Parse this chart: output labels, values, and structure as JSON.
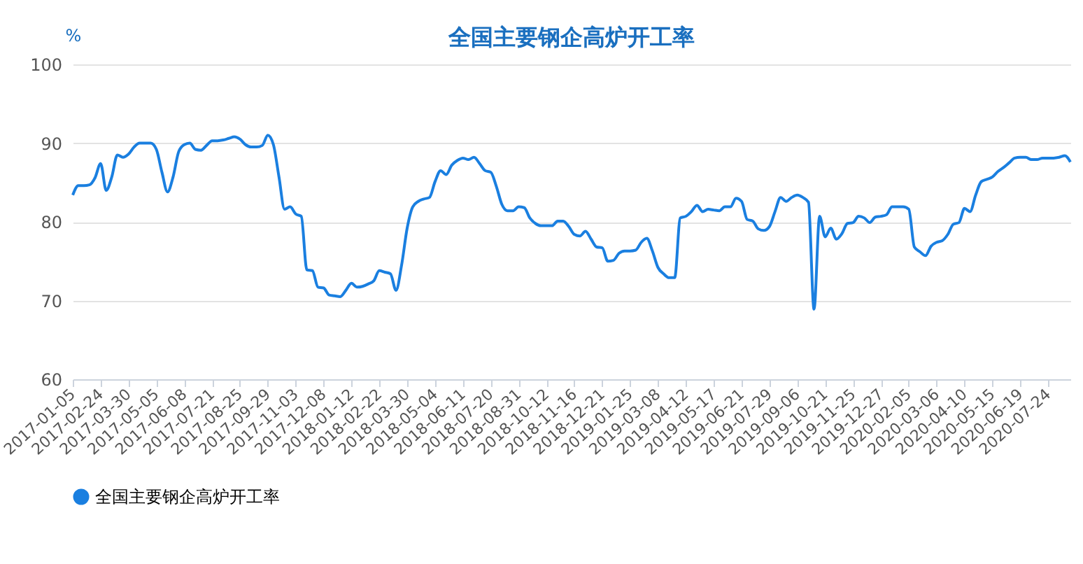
{
  "chart_data": {
    "type": "line",
    "title": "全国主要钢企高炉开工率",
    "ylabel": "%",
    "categories": [
      "2017-01-05",
      null,
      null,
      null,
      null,
      "2017-02-24",
      null,
      null,
      null,
      null,
      "2017-03-30",
      null,
      null,
      null,
      null,
      "2017-05-05",
      null,
      null,
      null,
      null,
      "2017-06-08",
      null,
      null,
      null,
      null,
      "2017-07-21",
      null,
      null,
      null,
      null,
      "2017-08-25",
      null,
      null,
      null,
      null,
      "2017-09-29",
      null,
      null,
      null,
      null,
      "2017-11-03",
      null,
      null,
      null,
      null,
      "2017-12-08",
      null,
      null,
      null,
      null,
      "2018-01-12",
      null,
      null,
      null,
      null,
      "2018-02-22",
      null,
      null,
      null,
      null,
      "2018-03-30",
      null,
      null,
      null,
      null,
      "2018-05-04",
      null,
      null,
      null,
      null,
      "2018-06-11",
      null,
      null,
      null,
      null,
      "2018-07-20",
      null,
      null,
      null,
      null,
      "2018-08-31",
      null,
      null,
      null,
      null,
      "2018-10-12",
      null,
      null,
      null,
      null,
      "2018-11-16",
      null,
      null,
      null,
      null,
      "2018-12-21",
      null,
      null,
      null,
      null,
      "2019-01-25",
      null,
      null,
      null,
      null,
      "2019-03-08",
      null,
      null,
      null,
      null,
      "2019-04-12",
      null,
      null,
      null,
      null,
      "2019-05-17",
      null,
      null,
      null,
      null,
      "2019-06-21",
      null,
      null,
      null,
      null,
      "2019-07-29",
      null,
      null,
      null,
      null,
      "2019-09-06",
      null,
      null,
      null,
      null,
      "2019-10-21",
      null,
      null,
      null,
      null,
      "2019-11-25",
      null,
      null,
      null,
      null,
      "2019-12-27",
      null,
      null,
      null,
      null,
      "2020-02-05",
      null,
      null,
      null,
      null,
      "2020-03-06",
      null,
      null,
      null,
      null,
      "2020-04-10",
      null,
      null,
      null,
      null,
      "2020-05-15",
      null,
      null,
      null,
      null,
      "2020-06-19",
      null,
      null,
      null,
      null,
      "2020-07-24",
      null,
      null,
      null,
      null
    ],
    "series": [
      {
        "name": "全国主要钢企高炉开工率",
        "color": "#1a7fe0",
        "values": [
          83.4,
          84.6,
          84.6,
          84.7,
          85.6,
          87.4,
          84,
          85.7,
          88.5,
          88.2,
          88.6,
          89.5,
          90,
          90,
          90,
          89.2,
          86.3,
          83.8,
          85.7,
          88.9,
          89.8,
          90,
          89.2,
          89.1,
          89.7,
          90.3,
          90.3,
          90.4,
          90.6,
          90.8,
          90.5,
          89.8,
          89.5,
          89.5,
          89.7,
          91,
          89.8,
          85.7,
          81.6,
          81.9,
          81,
          80.7,
          73.9,
          73.8,
          71.7,
          71.6,
          70.7,
          70.6,
          70.5,
          71.3,
          72.2,
          71.7,
          71.8,
          72.1,
          72.5,
          73.8,
          73.6,
          73.4,
          71.3,
          74.5,
          79.2,
          81.9,
          82.6,
          82.9,
          83.1,
          85.1,
          86.5,
          86,
          87.2,
          87.8,
          88.1,
          87.9,
          88.2,
          87.4,
          86.5,
          86.3,
          84.5,
          82.2,
          81.4,
          81.4,
          81.9,
          81.8,
          80.5,
          79.8,
          79.5,
          79.5,
          79.5,
          80.1,
          80.1,
          79.4,
          78.4,
          78.2,
          78.8,
          77.8,
          76.8,
          76.7,
          75,
          75.1,
          76,
          76.3,
          76.3,
          76.4,
          77.4,
          77.9,
          76.3,
          74.2,
          73.4,
          72.9,
          72.9,
          80.5,
          80.7,
          81.3,
          82.1,
          81.3,
          81.6,
          81.5,
          81.4,
          81.9,
          81.9,
          83,
          82.6,
          80.3,
          80.1,
          79.1,
          78.9,
          79.4,
          81.3,
          83.1,
          82.6,
          83.1,
          83.4,
          83.1,
          82.5,
          68.9,
          80.7,
          78.1,
          79.2,
          77.8,
          78.5,
          79.8,
          79.9,
          80.7,
          80.5,
          79.9,
          80.6,
          80.7,
          80.9,
          81.9,
          81.9,
          81.9,
          81.6,
          76.8,
          76.2,
          75.7,
          76.9,
          77.4,
          77.6,
          78.4,
          79.7,
          79.9,
          81.7,
          81.3,
          83.4,
          85.1,
          85.4,
          85.7,
          86.4,
          86.9,
          87.5,
          88.1,
          88.2,
          88.2,
          87.9,
          87.9,
          88.1,
          88.1,
          88.1,
          88.2,
          88.4,
          87.6
        ]
      }
    ],
    "ylim": [
      60,
      100
    ],
    "yticks": [
      60,
      70,
      80,
      90,
      100
    ],
    "grid": "y",
    "legend": "bottom"
  }
}
